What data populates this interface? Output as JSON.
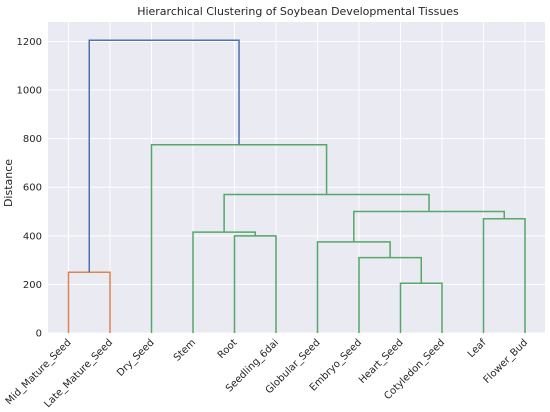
{
  "chart_data": {
    "type": "dendrogram",
    "title": "Hierarchical Clustering of Soybean Developmental Tissues",
    "xlabel": "",
    "ylabel": "Distance",
    "ylim": [
      0,
      1280
    ],
    "yticks": [
      0,
      200,
      400,
      600,
      800,
      1000,
      1200
    ],
    "grid": true,
    "leaves": [
      "Mid_Mature_Seed",
      "Late_Mature_Seed",
      "Dry_Seed",
      "Stem",
      "Root",
      "Seedling_6dai",
      "Globular_Seed",
      "Embryo_Seed",
      "Heart_Seed",
      "Cotyledon_Seed",
      "Leaf",
      "Flower_Bud"
    ],
    "colors": {
      "cluster_orange": "#dd8452",
      "cluster_green": "#55a868",
      "root_link": "#4c72b0",
      "background": "#eaeaf2",
      "grid": "#ffffff"
    },
    "merges": [
      {
        "left": "Mid_Mature_Seed",
        "right": "Late_Mature_Seed",
        "height": 250,
        "color": "cluster_orange"
      },
      {
        "left": "Heart_Seed",
        "right": "Cotyledon_Seed",
        "height": 205,
        "color": "cluster_green"
      },
      {
        "left": "Embryo_Seed",
        "right": [
          "Heart_Seed",
          "Cotyledon_Seed"
        ],
        "height": 310,
        "color": "cluster_green"
      },
      {
        "left": "Globular_Seed",
        "right": [
          "Embryo_Seed",
          "Heart_Seed",
          "Cotyledon_Seed"
        ],
        "height": 375,
        "color": "cluster_green"
      },
      {
        "left": "Leaf",
        "right": "Flower_Bud",
        "height": 470,
        "color": "cluster_green"
      },
      {
        "left": [
          "Globular_Seed",
          "Embryo_Seed",
          "Heart_Seed",
          "Cotyledon_Seed"
        ],
        "right": [
          "Leaf",
          "Flower_Bud"
        ],
        "height": 500,
        "color": "cluster_green"
      },
      {
        "left": "Root",
        "right": "Seedling_6dai",
        "height": 400,
        "color": "cluster_green"
      },
      {
        "left": "Stem",
        "right": [
          "Root",
          "Seedling_6dai"
        ],
        "height": 415,
        "color": "cluster_green"
      },
      {
        "left": [
          "Stem",
          "Root",
          "Seedling_6dai"
        ],
        "right": [
          "Globular_Seed",
          "Embryo_Seed",
          "Heart_Seed",
          "Cotyledon_Seed",
          "Leaf",
          "Flower_Bud"
        ],
        "height": 570,
        "color": "cluster_green"
      },
      {
        "left": "Dry_Seed",
        "right": [
          "Stem",
          "Root",
          "Seedling_6dai",
          "Globular_Seed",
          "Embryo_Seed",
          "Heart_Seed",
          "Cotyledon_Seed",
          "Leaf",
          "Flower_Bud"
        ],
        "height": 775,
        "color": "cluster_green"
      },
      {
        "left": [
          "Mid_Mature_Seed",
          "Late_Mature_Seed"
        ],
        "right": [
          "Dry_Seed",
          "Stem",
          "Root",
          "Seedling_6dai",
          "Globular_Seed",
          "Embryo_Seed",
          "Heart_Seed",
          "Cotyledon_Seed",
          "Leaf",
          "Flower_Bud"
        ],
        "height": 1205,
        "color": "root_link"
      }
    ]
  }
}
